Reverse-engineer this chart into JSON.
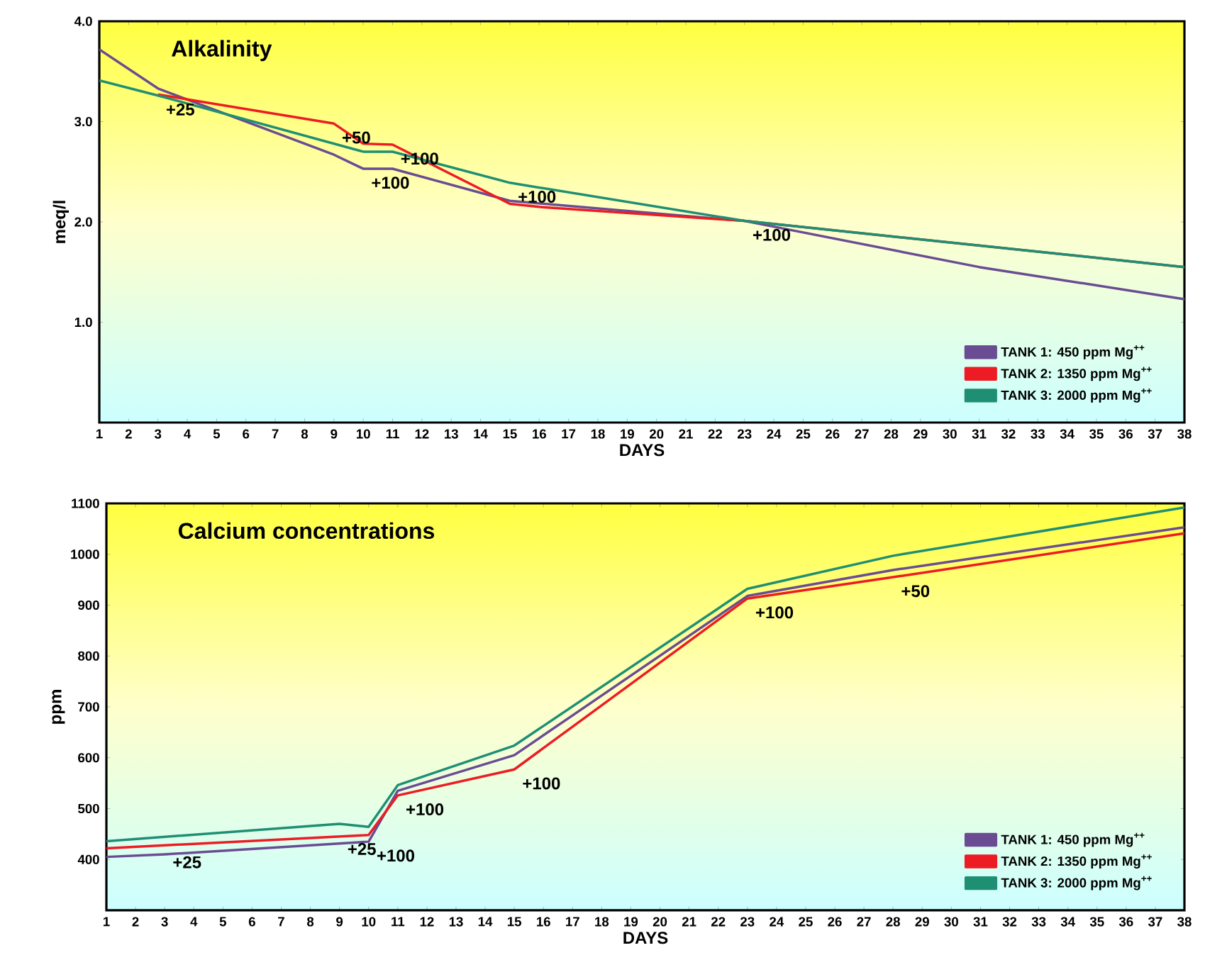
{
  "chart_data": [
    {
      "type": "line",
      "title": "Alkalinity",
      "xlabel": "DAYS",
      "ylabel": "meq/l",
      "xlim": [
        1,
        38
      ],
      "xticks": [
        1,
        2,
        3,
        4,
        5,
        6,
        7,
        8,
        9,
        10,
        11,
        12,
        13,
        14,
        15,
        16,
        17,
        18,
        19,
        20,
        21,
        22,
        23,
        24,
        25,
        26,
        27,
        28,
        29,
        30,
        31,
        32,
        33,
        34,
        35,
        36,
        37,
        38
      ],
      "ylim": [
        0,
        4
      ],
      "yticks": [
        {
          "value": 1,
          "label": "1.0"
        },
        {
          "value": 2,
          "label": "2.0"
        },
        {
          "value": 3,
          "label": "3.0"
        },
        {
          "value": 4,
          "label": "4.0"
        }
      ],
      "legend": "bottom right",
      "grid": false,
      "line_style": "solid",
      "series": [
        {
          "name": "TANK 1: 450 ppm Mg$^{++}$",
          "color": "#6a4c93",
          "x": [
            1,
            3,
            9,
            10,
            11,
            15,
            23,
            31,
            38
          ],
          "values": [
            3.72,
            3.33,
            2.67,
            2.53,
            2.53,
            2.21,
            2.01,
            1.55,
            1.23
          ]
        },
        {
          "name": "TANK 2: 1350 ppm Mg$^{++}$",
          "color": "#ed1c24",
          "x": [
            3,
            9,
            10,
            11,
            15,
            16,
            23,
            38
          ],
          "values": [
            3.27,
            2.98,
            2.78,
            2.77,
            2.18,
            2.15,
            2.01,
            1.55
          ]
        },
        {
          "name": "TANK 3: 2000 ppm Mg$^{++}$",
          "color": "#1f8f74",
          "x": [
            1,
            3,
            10,
            11,
            15,
            23,
            38
          ],
          "values": [
            3.41,
            3.26,
            2.7,
            2.7,
            2.39,
            2.01,
            1.55
          ]
        }
      ],
      "annotations": [
        {
          "text": "+25",
          "x": 3,
          "y": 3.26
        },
        {
          "text": "+50",
          "x": 9,
          "y": 2.98
        },
        {
          "text": "+100",
          "x": 10,
          "y": 2.53
        },
        {
          "text": "+100",
          "x": 11,
          "y": 2.77
        },
        {
          "text": "+100",
          "x": 15,
          "y": 2.39
        },
        {
          "text": "+100",
          "x": 23,
          "y": 2.01
        }
      ]
    },
    {
      "type": "line",
      "title": "Calcium concentrations",
      "xlabel": "DAYS",
      "ylabel": "ppm",
      "xlim": [
        1,
        38
      ],
      "xticks": [
        1,
        2,
        3,
        4,
        5,
        6,
        7,
        8,
        9,
        10,
        11,
        12,
        13,
        14,
        15,
        16,
        17,
        18,
        19,
        20,
        21,
        22,
        23,
        24,
        25,
        26,
        27,
        28,
        29,
        30,
        31,
        32,
        33,
        34,
        35,
        36,
        37,
        38
      ],
      "ylim": [
        300,
        1100
      ],
      "yticks": [
        400,
        500,
        600,
        700,
        800,
        900,
        1000,
        1100
      ],
      "legend": "bottom right",
      "grid": false,
      "line_style": "solid",
      "series": [
        {
          "name": "TANK 1: 450 ppm Mg$^{++}$",
          "color": "#6a4c93",
          "x": [
            1,
            3,
            10,
            11,
            15,
            23,
            28,
            38
          ],
          "values": [
            405,
            410,
            435,
            535,
            605,
            918,
            969,
            1053
          ]
        },
        {
          "name": "TANK 2: 1350 ppm Mg$^{++}$",
          "color": "#ed1c24",
          "x": [
            1,
            10,
            11,
            15,
            23,
            28,
            38
          ],
          "values": [
            422,
            448,
            526,
            577,
            913,
            955,
            1041
          ]
        },
        {
          "name": "TANK 3: 2000 ppm Mg$^{++}$",
          "color": "#1f8f74",
          "x": [
            1,
            9,
            10,
            11,
            15,
            23,
            28,
            38
          ],
          "values": [
            436,
            470,
            464,
            546,
            624,
            932,
            997,
            1092
          ]
        }
      ],
      "annotations": [
        {
          "text": "+25",
          "x": 3,
          "y": 422
        },
        {
          "text": "+25",
          "x": 9,
          "y": 448
        },
        {
          "text": "+100",
          "x": 10,
          "y": 435
        },
        {
          "text": "+100",
          "x": 11,
          "y": 526
        },
        {
          "text": "+100",
          "x": 15,
          "y": 577
        },
        {
          "text": "+100",
          "x": 23,
          "y": 913
        },
        {
          "text": "+50",
          "x": 28,
          "y": 955
        }
      ]
    }
  ]
}
